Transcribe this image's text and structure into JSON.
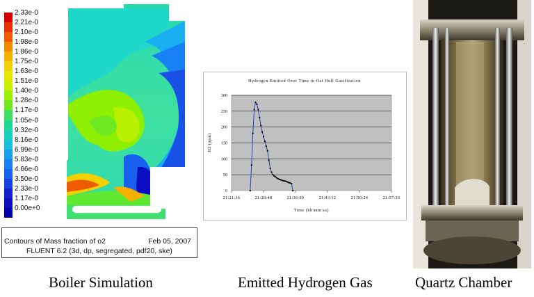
{
  "boiler": {
    "legend_labels": [
      "2.33e-0",
      "2.21e-0",
      "2.10e-0",
      "1.98e-0",
      "1.86e-0",
      "1.75e-0",
      "1.63e-0",
      "1.51e-0",
      "1.40e-0",
      "1.28e-0",
      "1.17e-0",
      "1.05e-0",
      "9.32e-0",
      "8.16e-0",
      "6.99e-0",
      "5.83e-0",
      "4.66e-0",
      "3.50e-0",
      "2.33e-0",
      "1.17e-0",
      "0.00e+0"
    ],
    "legend_colors": [
      "#d40000",
      "#e83000",
      "#f05a00",
      "#f58a00",
      "#f7b000",
      "#f3d000",
      "#e6e800",
      "#c6f000",
      "#9cf000",
      "#6ee820",
      "#3fe060",
      "#22d896",
      "#18d0c0",
      "#18c0e0",
      "#18a0f0",
      "#1880f5",
      "#1860f0",
      "#1840e0",
      "#1420d0",
      "#0c0cc0",
      "#0400a8"
    ],
    "caption_line1": "Contours of Mass fraction of o2",
    "caption_date": "Feb 05, 2007",
    "caption_line2": "FLUENT 6.2 (3d, dp, segregated, pdf20, ske)"
  },
  "chart_data": {
    "type": "line",
    "title": "Hydrogen Emitted Over Time in Oat Hull Gasification",
    "xlabel": "Time (hh:mm:ss)",
    "ylabel": "H2 (ppm)",
    "ylim": [
      0,
      300
    ],
    "yticks": [
      0,
      50,
      100,
      150,
      200,
      250,
      300
    ],
    "xticks": [
      "21:21:36",
      "21:28:48",
      "21:36:00",
      "21:43:12",
      "21:50:24",
      "21:57:36"
    ],
    "xlim": [
      "21:21:36",
      "21:57:36"
    ],
    "grid": true,
    "series": [
      {
        "x": [
          "21:25:48",
          "21:26:06",
          "21:26:24",
          "21:26:42",
          "21:27:00",
          "21:27:18",
          "21:27:36",
          "21:27:54",
          "21:28:12",
          "21:28:30",
          "21:28:48",
          "21:29:06",
          "21:29:24",
          "21:29:42",
          "21:30:00",
          "21:30:18",
          "21:30:36",
          "21:30:54",
          "21:31:12",
          "21:31:30",
          "21:31:48",
          "21:32:06",
          "21:32:24",
          "21:32:42",
          "21:33:00",
          "21:33:18",
          "21:33:36",
          "21:33:54",
          "21:34:12",
          "21:34:30",
          "21:34:48",
          "21:35:06",
          "21:35:24"
        ],
        "values": [
          0,
          80,
          180,
          255,
          278,
          272,
          255,
          230,
          205,
          185,
          170,
          155,
          140,
          125,
          95,
          70,
          58,
          50,
          46,
          43,
          40,
          37,
          35,
          34,
          32,
          31,
          30,
          29,
          27,
          25,
          24,
          22,
          0
        ]
      }
    ],
    "line_color": "#1f3fbf",
    "plot_bg": "#c0c0c0"
  },
  "captions": {
    "boiler": "Boiler Simulation",
    "hydrogen": "Emitted Hydrogen Gas",
    "quartz": "Quartz Chamber"
  }
}
